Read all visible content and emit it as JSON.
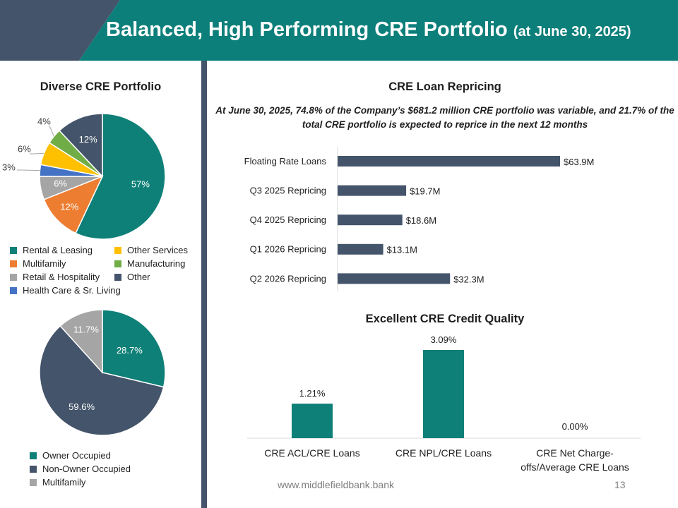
{
  "header": {
    "title": "Balanced, High Performing CRE Portfolio",
    "title_suffix": "(at June 30, 2025)",
    "colors": {
      "band": "#0d7f7a",
      "accent": "#44546a"
    }
  },
  "left": {
    "title": "Diverse CRE Portfolio",
    "legend1": [
      {
        "label": "Rental & Leasing",
        "color": "#0e8077"
      },
      {
        "label": "Other Services",
        "color": "#ffc000"
      },
      {
        "label": "Multifamily",
        "color": "#ed7d31"
      },
      {
        "label": "Manufacturing",
        "color": "#70ad47"
      },
      {
        "label": "Retail & Hospitality",
        "color": "#a5a5a5"
      },
      {
        "label": "Other",
        "color": "#44546a"
      },
      {
        "label": "Health Care & Sr. Living",
        "color": "#4472c4"
      }
    ],
    "legend2": [
      {
        "label": "Owner Occupied",
        "color": "#0e8077"
      },
      {
        "label": "Non-Owner Occupied",
        "color": "#44546a"
      },
      {
        "label": "Multifamily",
        "color": "#a5a5a5"
      }
    ]
  },
  "right": {
    "repricing_title": "CRE Loan Repricing",
    "subtitle": "At June 30, 2025, 74.8% of the Company’s $681.2 million CRE portfolio was variable, and 21.7% of the total CRE portfolio is expected to reprice in the next 12 months",
    "quality_title": "Excellent CRE Credit Quality"
  },
  "footer": {
    "url": "www.middlefieldbank.bank",
    "page": "13"
  },
  "chart_data": [
    {
      "id": "cre-portfolio-mix",
      "type": "pie",
      "title": "Diverse CRE Portfolio",
      "categories": [
        "Rental & Leasing",
        "Multifamily",
        "Retail & Hospitality",
        "Health Care & Sr. Living",
        "Other Services",
        "Manufacturing",
        "Other"
      ],
      "values": [
        57,
        12,
        6,
        3,
        6,
        4,
        12
      ],
      "labels": [
        "57%",
        "12%",
        "6%",
        "3%",
        "6%",
        "4%",
        "12%"
      ],
      "colors": [
        "#0e8077",
        "#ed7d31",
        "#a5a5a5",
        "#4472c4",
        "#ffc000",
        "#70ad47",
        "#44546a"
      ]
    },
    {
      "id": "occupancy-mix",
      "type": "pie",
      "title": "",
      "categories": [
        "Owner Occupied",
        "Non-Owner Occupied",
        "Multifamily"
      ],
      "values": [
        28.7,
        59.6,
        11.7
      ],
      "labels": [
        "28.7%",
        "59.6%",
        "11.7%"
      ],
      "colors": [
        "#0e8077",
        "#44546a",
        "#a5a5a5"
      ]
    },
    {
      "id": "loan-repricing",
      "type": "bar",
      "orientation": "horizontal",
      "title": "CRE Loan Repricing",
      "categories": [
        "Floating Rate Loans",
        "Q3 2025 Repricing",
        "Q4 2025 Repricing",
        "Q1 2026 Repricing",
        "Q2 2026 Repricing"
      ],
      "values": [
        63.9,
        19.7,
        18.6,
        13.1,
        32.3
      ],
      "labels": [
        "$63.9M",
        "$19.7M",
        "$18.6M",
        "$13.1M",
        "$32.3M"
      ],
      "unit": "$M",
      "xlim": [
        0,
        70
      ],
      "color": "#44546a"
    },
    {
      "id": "credit-quality",
      "type": "bar",
      "orientation": "vertical",
      "title": "Excellent CRE Credit Quality",
      "categories": [
        "CRE ACL/CRE Loans",
        "CRE NPL/CRE Loans",
        "CRE Net Charge-offs/Average CRE Loans"
      ],
      "category_lines": [
        [
          "CRE ACL/CRE Loans"
        ],
        [
          "CRE NPL/CRE Loans"
        ],
        [
          "CRE Net Charge-",
          "offs/Average CRE Loans"
        ]
      ],
      "values": [
        1.21,
        3.09,
        0.0
      ],
      "labels": [
        "1.21%",
        "3.09%",
        "0.00%"
      ],
      "unit": "%",
      "ylim": [
        0,
        3.5
      ],
      "color": "#0e8077"
    }
  ]
}
